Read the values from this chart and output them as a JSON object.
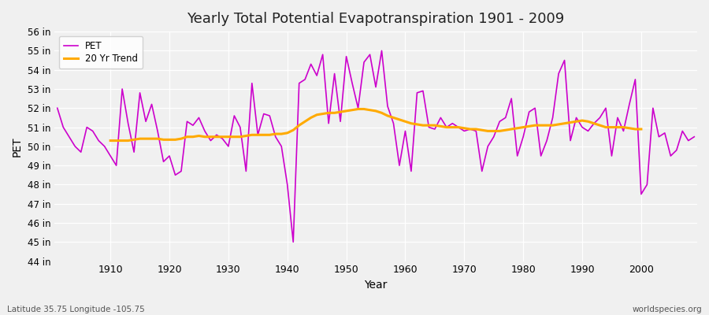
{
  "title": "Yearly Total Potential Evapotranspiration 1901 - 2009",
  "ylabel": "PET",
  "xlabel": "Year",
  "footnote_left": "Latitude 35.75 Longitude -105.75",
  "footnote_right": "worldspecies.org",
  "pet_color": "#cc00cc",
  "trend_color": "#ffaa00",
  "bg_color": "#f0f0f0",
  "plot_bg_color": "#f0f0f0",
  "ylim": [
    44,
    56
  ],
  "yticks": [
    44,
    45,
    46,
    47,
    48,
    49,
    50,
    51,
    52,
    53,
    54,
    55,
    56
  ],
  "xlim": [
    1900.5,
    2009.5
  ],
  "years": [
    1901,
    1902,
    1903,
    1904,
    1905,
    1906,
    1907,
    1908,
    1909,
    1910,
    1911,
    1912,
    1913,
    1914,
    1915,
    1916,
    1917,
    1918,
    1919,
    1920,
    1921,
    1922,
    1923,
    1924,
    1925,
    1926,
    1927,
    1928,
    1929,
    1930,
    1931,
    1932,
    1933,
    1934,
    1935,
    1936,
    1937,
    1938,
    1939,
    1940,
    1941,
    1942,
    1943,
    1944,
    1945,
    1946,
    1947,
    1948,
    1949,
    1950,
    1951,
    1952,
    1953,
    1954,
    1955,
    1956,
    1957,
    1958,
    1959,
    1960,
    1961,
    1962,
    1963,
    1964,
    1965,
    1966,
    1967,
    1968,
    1969,
    1970,
    1971,
    1972,
    1973,
    1974,
    1975,
    1976,
    1977,
    1978,
    1979,
    1980,
    1981,
    1982,
    1983,
    1984,
    1985,
    1986,
    1987,
    1988,
    1989,
    1990,
    1991,
    1992,
    1993,
    1994,
    1995,
    1996,
    1997,
    1998,
    1999,
    2000,
    2001,
    2002,
    2003,
    2004,
    2005,
    2006,
    2007,
    2008,
    2009
  ],
  "pet": [
    52.0,
    51.0,
    50.5,
    50.0,
    49.7,
    51.0,
    50.8,
    50.3,
    50.0,
    49.5,
    49.0,
    53.0,
    51.2,
    49.7,
    52.8,
    51.3,
    52.2,
    50.8,
    49.2,
    49.5,
    48.5,
    48.7,
    51.3,
    51.1,
    51.5,
    50.8,
    50.3,
    50.6,
    50.4,
    50.0,
    51.6,
    51.0,
    48.7,
    53.3,
    50.6,
    51.7,
    51.6,
    50.5,
    50.0,
    48.0,
    45.0,
    53.3,
    53.5,
    54.3,
    53.7,
    54.8,
    51.2,
    53.8,
    51.3,
    54.7,
    53.3,
    52.0,
    54.4,
    54.8,
    53.1,
    55.0,
    52.1,
    51.2,
    49.0,
    50.8,
    48.7,
    52.8,
    52.9,
    51.0,
    50.9,
    51.5,
    51.0,
    51.2,
    51.0,
    50.8,
    50.9,
    50.8,
    48.7,
    50.0,
    50.5,
    51.3,
    51.5,
    52.5,
    49.5,
    50.5,
    51.8,
    52.0,
    49.5,
    50.3,
    51.5,
    53.8,
    54.5,
    50.3,
    51.5,
    51.0,
    50.8,
    51.2,
    51.5,
    52.0,
    49.5,
    51.5,
    50.8,
    52.2,
    53.5,
    47.5,
    48.0,
    52.0,
    50.5,
    50.7,
    49.5,
    49.8,
    50.8,
    50.3,
    50.5
  ],
  "trend_start_year": 1910,
  "trend": [
    50.3,
    50.3,
    50.3,
    50.3,
    50.35,
    50.4,
    50.4,
    50.4,
    50.4,
    50.35,
    50.35,
    50.35,
    50.4,
    50.5,
    50.5,
    50.55,
    50.5,
    50.5,
    50.5,
    50.5,
    50.5,
    50.5,
    50.5,
    50.55,
    50.6,
    50.6,
    50.6,
    50.6,
    50.65,
    50.65,
    50.7,
    50.85,
    51.1,
    51.3,
    51.5,
    51.65,
    51.7,
    51.75,
    51.75,
    51.8,
    51.85,
    51.9,
    51.95,
    51.95,
    51.9,
    51.85,
    51.75,
    51.6,
    51.5,
    51.4,
    51.3,
    51.2,
    51.15,
    51.1,
    51.1,
    51.1,
    51.05,
    51.0,
    51.0,
    51.0,
    50.95,
    50.9,
    50.9,
    50.85,
    50.8,
    50.8,
    50.8,
    50.85,
    50.9,
    50.95,
    51.0,
    51.05,
    51.1,
    51.1,
    51.1,
    51.1,
    51.15,
    51.2,
    51.25,
    51.3,
    51.35,
    51.3,
    51.2,
    51.1,
    51.0,
    51.0,
    51.0,
    51.0,
    50.95,
    50.9,
    50.9
  ]
}
